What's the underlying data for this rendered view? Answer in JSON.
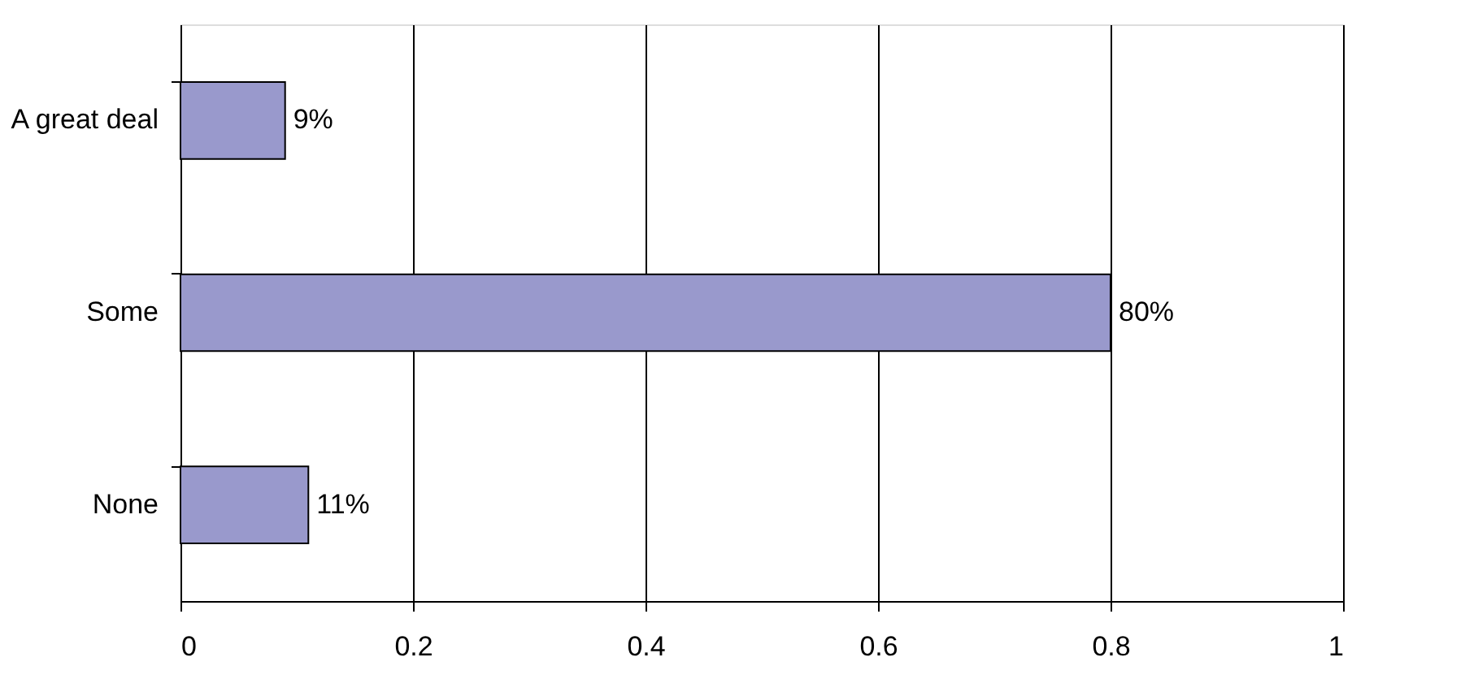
{
  "chart_data": {
    "type": "bar",
    "orientation": "horizontal",
    "categories": [
      "A great deal",
      "Some",
      "None"
    ],
    "values": [
      0.09,
      0.8,
      0.11
    ],
    "value_labels": [
      "9%",
      "80%",
      "11%"
    ],
    "color": "#9999cc",
    "xlim": [
      0,
      1
    ],
    "xticks": [
      0,
      0.2,
      0.4,
      0.6,
      0.8,
      1
    ],
    "grid": "x"
  }
}
